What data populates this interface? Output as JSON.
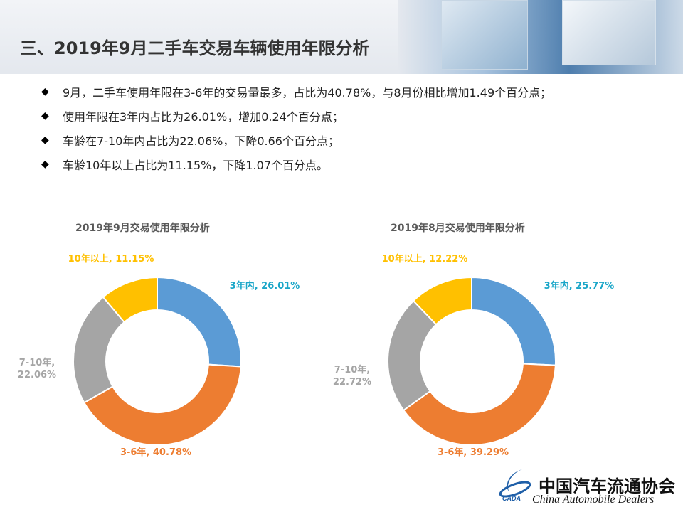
{
  "title": "三、2019年9月二手车交易车辆使用年限分析",
  "bullets": [
    "9月，二手车使用年限在3-6年的交易量最多，占比为40.78%，与8月份相比增加1.49个百分点；",
    "使用年限在3年内占比为26.01%，增加0.24个百分点；",
    "车龄在7-10年内占比为22.06%，下降0.66个百分点；",
    "车龄10年以上占比为11.15%，下降1.07个百分点。"
  ],
  "bullet_symbol": "◆",
  "colors": {
    "y3": "#5B9BD5",
    "y36": "#ED7D31",
    "y710": "#A5A5A5",
    "y10": "#FFC000"
  },
  "chart_data": [
    {
      "type": "pie",
      "title": "2019年9月交易使用年限分析",
      "categories": [
        "3年内",
        "3-6年",
        "7-10年",
        "10年以上"
      ],
      "values": [
        26.01,
        40.78,
        22.06,
        11.15
      ],
      "labels": [
        "3年内, 26.01%",
        "3-6年, 40.78%",
        "7-10年,\n22.06%",
        "10年以上, 11.15%"
      ]
    },
    {
      "type": "pie",
      "title": "2019年8月交易使用年限分析",
      "categories": [
        "3年内",
        "3-6年",
        "7-10年",
        "10年以上"
      ],
      "values": [
        25.77,
        39.29,
        22.72,
        12.22
      ],
      "labels": [
        "3年内, 25.77%",
        "3-6年, 39.29%",
        "7-10年,\n22.72%",
        "10年以上, 12.22%"
      ]
    }
  ],
  "footer": {
    "org_cn": "中国汽车流通协会",
    "org_en": "China Automobile Dealers",
    "logo_text": "CADA"
  }
}
